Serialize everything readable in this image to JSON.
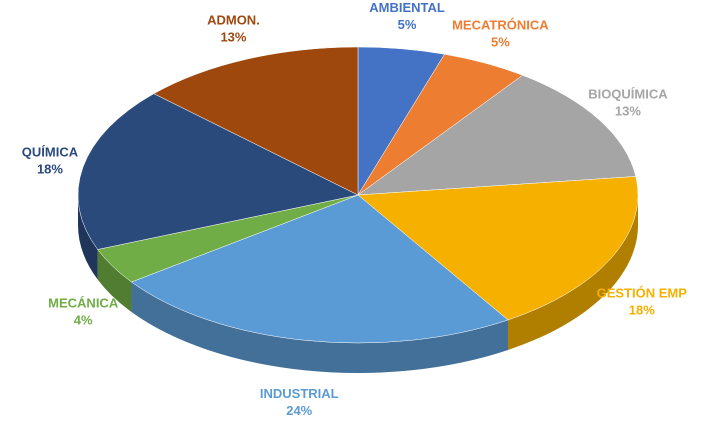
{
  "chart_data": {
    "type": "pie",
    "categories": [
      "AMBIENTAL",
      "MECATRÓNICA",
      "BIOQUÍMICA",
      "GESTIÓN EMP",
      "INDUSTRIAL",
      "MECÁNICA",
      "QUÍMICA",
      "ADMON."
    ],
    "values": [
      5,
      5,
      13,
      18,
      24,
      4,
      18,
      13
    ],
    "value_labels": [
      "5%",
      "5%",
      "13%",
      "18%",
      "24%",
      "4%",
      "18%",
      "13%"
    ],
    "colors": [
      "#4472c4",
      "#ed7d31",
      "#a5a5a5",
      "#f5b000",
      "#5b9bd5",
      "#70ad47",
      "#2b4a7c",
      "#9e480e"
    ]
  }
}
